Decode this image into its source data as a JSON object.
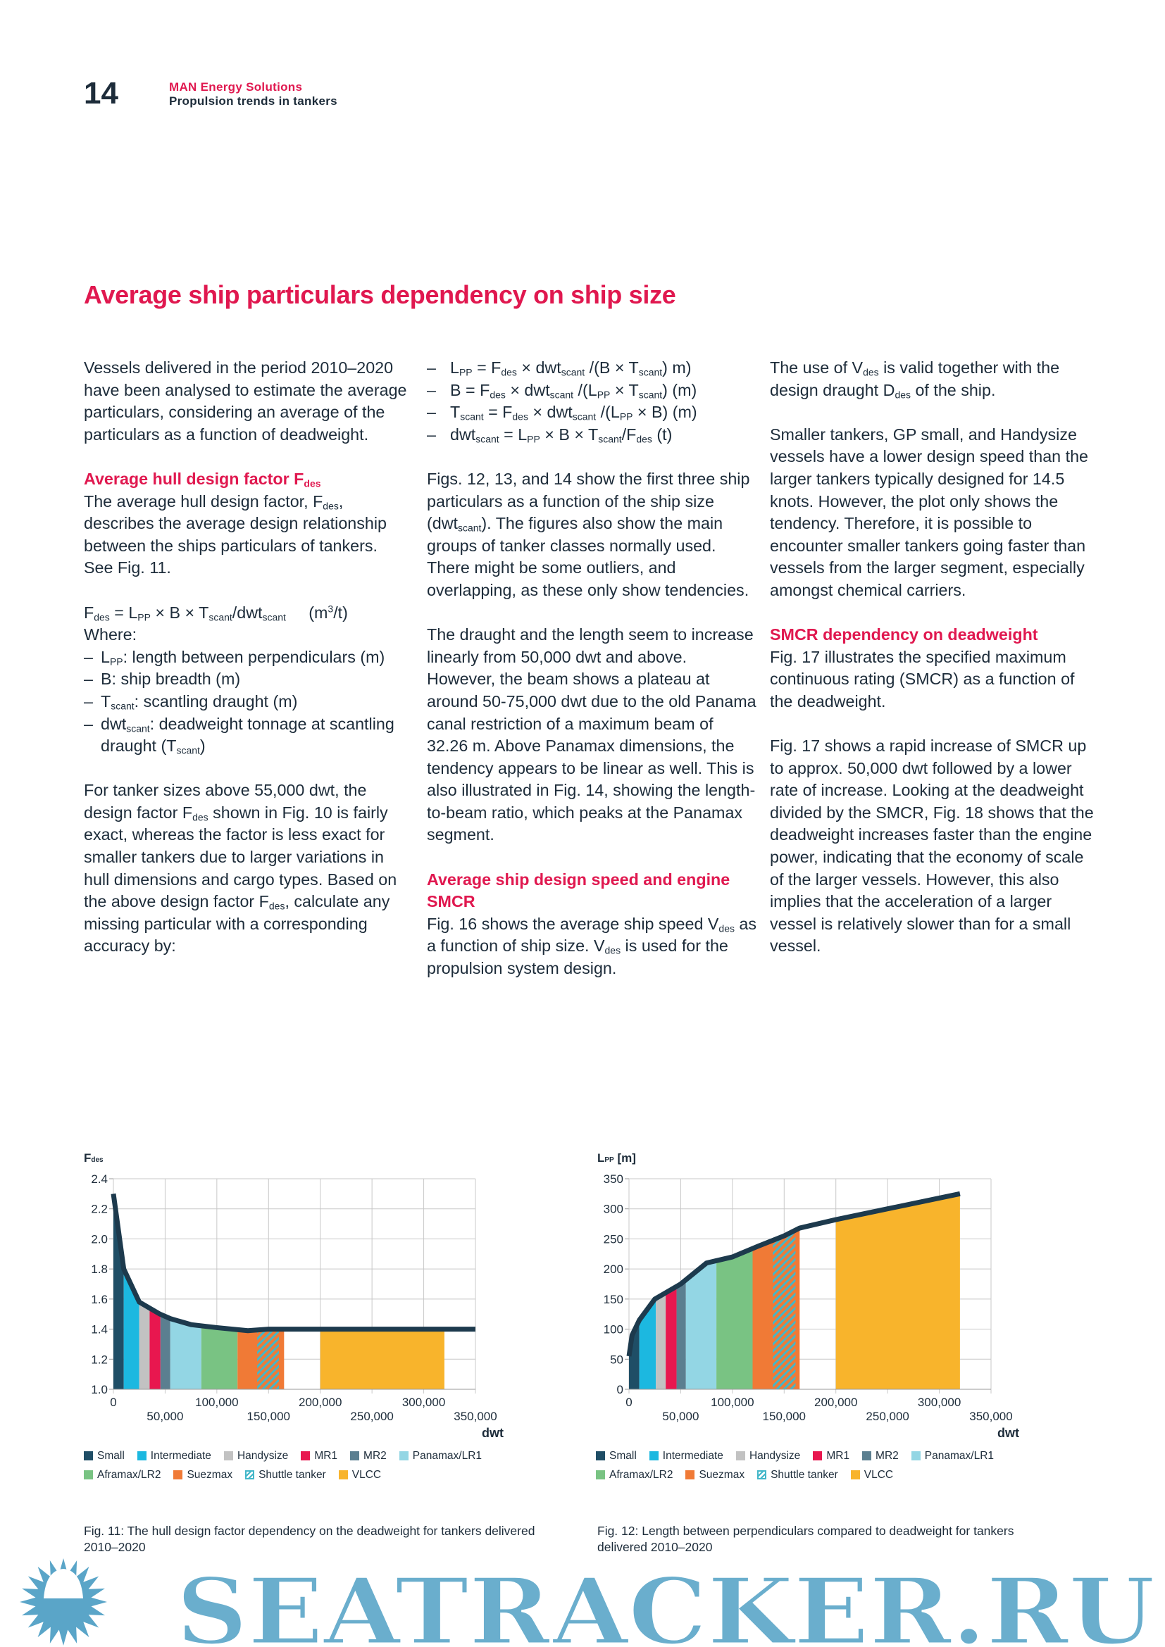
{
  "header": {
    "page_number": "14",
    "brand": "MAN Energy Solutions",
    "publication": "Propulsion trends in tankers"
  },
  "title": "Average ship particulars dependency on ship size",
  "columns": [
    {
      "blocks": [
        {
          "type": "p",
          "content": [
            "Vessels delivered in the period 2010–2020 have been analysed to estimate the average particulars, considering an average of the particulars as a function of deadweight."
          ]
        },
        {
          "type": "h",
          "content": [
            "Average hull design factor F",
            {
              "sub": "des"
            }
          ]
        },
        {
          "type": "p",
          "content": [
            "The average hull design factor, F",
            {
              "sub": "des"
            },
            ", describes the average design relationship between the ships particulars of tankers. See Fig. 11."
          ]
        },
        {
          "type": "p",
          "content": [
            "F",
            {
              "sub": "des"
            },
            " = L",
            {
              "sub": "PP"
            },
            " × B × T",
            {
              "sub": "scant"
            },
            "/dwt",
            {
              "sub": "scant"
            },
            "     (m",
            {
              "sup": "3"
            },
            "/t)"
          ],
          "tight": true
        },
        {
          "type": "p",
          "content": [
            "Where:"
          ],
          "tight": true
        },
        {
          "type": "ul",
          "items": [
            [
              "L",
              {
                "sub": "PP"
              },
              ": length between perpendiculars (m)"
            ],
            [
              "B: ship breadth (m)"
            ],
            [
              "T",
              {
                "sub": "scant"
              },
              ": scantling draught (m)"
            ],
            [
              "dwt",
              {
                "sub": "scant"
              },
              ": deadweight tonnage at scantling draught (T",
              {
                "sub": "scant"
              },
              ")"
            ]
          ]
        },
        {
          "type": "p",
          "content": [
            "For tanker sizes above 55,000 dwt, the design factor F",
            {
              "sub": "des"
            },
            " shown in Fig. 10 is fairly exact, whereas the factor is less exact for smaller tankers due to larger variations in hull dimensions and cargo types. Based on the above design factor F",
            {
              "sub": "des"
            },
            ", calculate any missing particular with a corresponding accuracy by:"
          ]
        }
      ]
    },
    {
      "blocks": [
        {
          "type": "ulf",
          "items": [
            [
              "L",
              {
                "sub": "PP"
              },
              " = F",
              {
                "sub": "des"
              },
              " × dwt",
              {
                "sub": "scant"
              },
              " /(B × T",
              {
                "sub": "scant"
              },
              ") m)"
            ],
            [
              "B = F",
              {
                "sub": "des"
              },
              " × dwt",
              {
                "sub": "scant"
              },
              " /(L",
              {
                "sub": "PP"
              },
              " × T",
              {
                "sub": "scant"
              },
              ") (m)"
            ],
            [
              "T",
              {
                "sub": "scant"
              },
              " = F",
              {
                "sub": "des"
              },
              " × dwt",
              {
                "sub": "scant"
              },
              " /(L",
              {
                "sub": "PP"
              },
              " × B) (m)"
            ],
            [
              "dwt",
              {
                "sub": "scant"
              },
              " = L",
              {
                "sub": "PP"
              },
              " × B × T",
              {
                "sub": "scant"
              },
              "/F",
              {
                "sub": "des"
              },
              " (t)"
            ]
          ]
        },
        {
          "type": "p",
          "content": [
            "Figs. 12, 13, and 14 show the first three ship particulars as a function of the ship size (dwt",
            {
              "sub": "scant"
            },
            "). The figures also show the main groups of tanker classes normally used. There might be some outliers, and overlapping, as these only show tendencies."
          ]
        },
        {
          "type": "p",
          "content": [
            "The draught and the length seem to increase linearly from 50,000 dwt and above. However, the beam shows a plateau at around 50-75,000 dwt due to the old Panama canal restriction of a maximum beam of 32.26 m. Above Panamax dimensions, the tendency appears to be linear as well. This is also illustrated in Fig. 14, showing the length-to-beam ratio, which peaks at the Panamax segment."
          ]
        },
        {
          "type": "h",
          "content": [
            "Average ship design speed and engine SMCR"
          ]
        },
        {
          "type": "p",
          "content": [
            "Fig. 16 shows the average ship speed V",
            {
              "sub": "des"
            },
            " as a function of ship size. V",
            {
              "sub": "des"
            },
            " is used for the propulsion system design."
          ]
        }
      ]
    },
    {
      "blocks": [
        {
          "type": "p",
          "content": [
            "The use of V",
            {
              "sub": "des"
            },
            " is valid together with the design draught D",
            {
              "sub": "des"
            },
            " of the ship."
          ]
        },
        {
          "type": "p",
          "content": [
            "Smaller tankers, GP small, and Handysize vessels have a lower design speed than the larger tankers typically designed for 14.5 knots. However, the plot only shows the tendency. Therefore, it is possible to encounter smaller tankers going faster than vessels from the larger segment, especially amongst chemical carriers."
          ]
        },
        {
          "type": "h",
          "content": [
            "SMCR dependency on deadweight"
          ]
        },
        {
          "type": "p",
          "content": [
            "Fig. 17 illustrates the specified maximum continuous rating (SMCR) as a function of the deadweight."
          ]
        },
        {
          "type": "p",
          "content": [
            "Fig. 17 shows a rapid increase of SMCR up to approx. 50,000 dwt followed by a lower rate of increase. Looking at the deadweight divided by the SMCR, Fig. 18 shows that the deadweight increases faster than the engine power, indicating that the economy of scale of the larger vessels. However, this also implies that the acceleration of a larger vessel is relatively slower than for a small vessel."
          ]
        }
      ]
    }
  ],
  "legend": [
    {
      "name": "Small",
      "color": "#1f4e66"
    },
    {
      "name": "Intermediate",
      "color": "#1cb8e0"
    },
    {
      "name": "Handysize",
      "color": "#c2c2c2"
    },
    {
      "name": "MR1",
      "color": "#e8174f"
    },
    {
      "name": "MR2",
      "color": "#5b7f90"
    },
    {
      "name": "Panamax/LR1",
      "color": "#93d6e4"
    },
    {
      "name": "Aframax/LR2",
      "color": "#79c383"
    },
    {
      "name": "Suezmax",
      "color": "#f07a36"
    },
    {
      "name": "Shuttle tanker",
      "color": "#43b7c9",
      "hatched": true
    },
    {
      "name": "VLCC",
      "color": "#f8b42c"
    }
  ],
  "line_color": "#1d3a4d",
  "chart_data": [
    {
      "type": "area",
      "ylabel": {
        "main": "F",
        "sub": "des",
        "suffix": ""
      },
      "xlabel": "dwt",
      "xlim": [
        0,
        350000
      ],
      "ylim": [
        1.0,
        2.4
      ],
      "xticks": [
        "0",
        "50,000",
        "100,000",
        "150,000",
        "200,000",
        "250,000",
        "300,000",
        "350,000"
      ],
      "yticks": [
        "1.0",
        "1.2",
        "1.4",
        "1.6",
        "1.8",
        "2.0",
        "2.2",
        "2.4"
      ],
      "grid": true,
      "legend_placement": "bottom",
      "line": {
        "x": [
          0,
          10000,
          25000,
          45000,
          55000,
          75000,
          100000,
          130000,
          150000,
          350000
        ],
        "y": [
          2.3,
          1.8,
          1.58,
          1.5,
          1.47,
          1.43,
          1.41,
          1.39,
          1.4,
          1.4
        ]
      },
      "bands": [
        {
          "class": "Small",
          "from": 0,
          "to": 10000
        },
        {
          "class": "Intermediate",
          "from": 10000,
          "to": 25000
        },
        {
          "class": "Handysize",
          "from": 25000,
          "to": 35000
        },
        {
          "class": "MR1",
          "from": 35000,
          "to": 45500
        },
        {
          "class": "MR2",
          "from": 45500,
          "to": 55000
        },
        {
          "class": "Panamax/LR1",
          "from": 55000,
          "to": 85000
        },
        {
          "class": "Aframax/LR2",
          "from": 85000,
          "to": 120000
        },
        {
          "class": "Suezmax",
          "from": 120000,
          "to": 165000
        },
        {
          "class": "Shuttle tanker",
          "from": 139000,
          "to": 160000
        },
        {
          "class": "VLCC",
          "from": 200000,
          "to": 320000
        }
      ],
      "caption": "Fig. 11: The hull design factor dependency on the deadweight for tankers delivered 2010–2020"
    },
    {
      "type": "area",
      "ylabel": {
        "main": "L",
        "sub": "PP",
        "suffix": " [m]"
      },
      "xlabel": "dwt",
      "xlim": [
        0,
        350000
      ],
      "ylim": [
        0,
        350
      ],
      "xticks": [
        "0",
        "50,000",
        "100,000",
        "150,000",
        "200,000",
        "250,000",
        "300,000",
        "350,000"
      ],
      "yticks": [
        "0",
        "50",
        "100",
        "150",
        "200",
        "250",
        "300",
        "350"
      ],
      "grid": true,
      "legend_placement": "bottom",
      "line": {
        "x": [
          0,
          3000,
          10000,
          25000,
          50000,
          75000,
          100000,
          125000,
          150000,
          165000,
          200000,
          250000,
          320000
        ],
        "y": [
          55,
          90,
          115,
          150,
          175,
          210,
          220,
          238,
          255,
          268,
          282,
          300,
          325
        ]
      },
      "bands": [
        {
          "class": "Small",
          "from": 0,
          "to": 10000
        },
        {
          "class": "Intermediate",
          "from": 10000,
          "to": 26000
        },
        {
          "class": "Handysize",
          "from": 26000,
          "to": 35500
        },
        {
          "class": "MR1",
          "from": 35500,
          "to": 46000
        },
        {
          "class": "MR2",
          "from": 46000,
          "to": 55000
        },
        {
          "class": "Panamax/LR1",
          "from": 55000,
          "to": 84500
        },
        {
          "class": "Aframax/LR2",
          "from": 84500,
          "to": 119500
        },
        {
          "class": "Suezmax",
          "from": 119500,
          "to": 165000
        },
        {
          "class": "Shuttle tanker",
          "from": 139000,
          "to": 161000
        },
        {
          "class": "VLCC",
          "from": 200000,
          "to": 320000
        }
      ],
      "caption": "Fig. 12: Length between perpendiculars compared to deadweight for tankers delivered 2010–2020"
    }
  ],
  "watermark": {
    "text": "SEATRACKER.RU",
    "color": "#5aa5c8"
  }
}
